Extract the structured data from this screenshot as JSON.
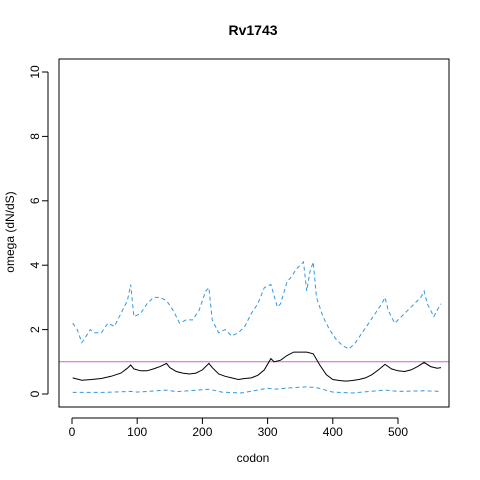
{
  "chart_data": {
    "type": "line",
    "title": "Rv1743",
    "xlabel": "codon",
    "ylabel": "omega (dN/dS)",
    "xlim": [
      0,
      566
    ],
    "ylim": [
      0,
      10
    ],
    "x_ticks": [
      0,
      100,
      200,
      300,
      400,
      500
    ],
    "y_ticks": [
      0,
      2,
      4,
      6,
      8,
      10
    ],
    "grid": false,
    "legend": "none",
    "reference_line": {
      "y": 1,
      "color": "#cc66cc"
    },
    "series": [
      {
        "style": "dashed",
        "color": "#3399dd",
        "x": [
          1,
          8,
          15,
          22,
          28,
          35,
          45,
          55,
          65,
          75,
          85,
          90,
          95,
          105,
          115,
          125,
          135,
          145,
          155,
          165,
          175,
          185,
          195,
          205,
          210,
          215,
          225,
          235,
          245,
          255,
          265,
          275,
          285,
          295,
          305,
          315,
          320,
          330,
          335,
          345,
          355,
          360,
          365,
          370,
          375,
          385,
          395,
          405,
          415,
          425,
          435,
          445,
          455,
          465,
          475,
          480,
          485,
          495,
          505,
          515,
          525,
          535,
          540,
          545,
          555,
          560,
          566
        ],
        "y": [
          2.2,
          2.0,
          1.6,
          1.8,
          2.0,
          1.9,
          1.9,
          2.2,
          2.1,
          2.5,
          2.9,
          3.4,
          2.4,
          2.5,
          2.8,
          3.0,
          3.0,
          2.9,
          2.6,
          2.2,
          2.3,
          2.3,
          2.6,
          3.2,
          3.3,
          2.3,
          1.9,
          2.0,
          1.8,
          1.9,
          2.1,
          2.5,
          2.8,
          3.3,
          3.4,
          2.7,
          2.8,
          3.5,
          3.6,
          3.9,
          4.1,
          3.2,
          3.8,
          4.1,
          3.0,
          2.4,
          2.0,
          1.7,
          1.5,
          1.4,
          1.6,
          1.9,
          2.2,
          2.5,
          2.8,
          3.0,
          2.6,
          2.2,
          2.4,
          2.6,
          2.8,
          3.0,
          3.2,
          2.8,
          2.4,
          2.6,
          2.8
        ]
      },
      {
        "style": "solid",
        "color": "#000000",
        "x": [
          1,
          15,
          30,
          45,
          60,
          75,
          85,
          90,
          95,
          105,
          115,
          125,
          135,
          145,
          150,
          160,
          170,
          180,
          190,
          200,
          210,
          215,
          225,
          235,
          245,
          255,
          265,
          275,
          285,
          295,
          305,
          310,
          320,
          330,
          340,
          350,
          360,
          370,
          380,
          390,
          400,
          410,
          420,
          430,
          440,
          450,
          460,
          470,
          480,
          490,
          500,
          510,
          520,
          530,
          540,
          550,
          560,
          566
        ],
        "y": [
          0.5,
          0.43,
          0.45,
          0.48,
          0.55,
          0.65,
          0.8,
          0.9,
          0.78,
          0.72,
          0.72,
          0.78,
          0.85,
          0.95,
          0.82,
          0.7,
          0.65,
          0.62,
          0.65,
          0.75,
          0.95,
          0.82,
          0.62,
          0.55,
          0.5,
          0.45,
          0.48,
          0.5,
          0.58,
          0.75,
          1.1,
          1.0,
          1.05,
          1.2,
          1.3,
          1.3,
          1.3,
          1.25,
          0.9,
          0.6,
          0.45,
          0.42,
          0.4,
          0.42,
          0.45,
          0.5,
          0.6,
          0.75,
          0.92,
          0.78,
          0.72,
          0.7,
          0.75,
          0.85,
          0.98,
          0.85,
          0.8,
          0.82
        ]
      },
      {
        "style": "dashed",
        "color": "#3399dd",
        "x": [
          1,
          50,
          90,
          100,
          145,
          160,
          210,
          230,
          260,
          300,
          310,
          340,
          360,
          375,
          400,
          430,
          480,
          500,
          540,
          566
        ],
        "y": [
          0.05,
          0.05,
          0.08,
          0.06,
          0.12,
          0.07,
          0.15,
          0.06,
          0.03,
          0.18,
          0.15,
          0.2,
          0.22,
          0.2,
          0.06,
          0.03,
          0.12,
          0.08,
          0.1,
          0.08
        ]
      }
    ]
  }
}
